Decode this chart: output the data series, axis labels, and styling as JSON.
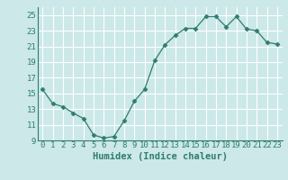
{
  "x": [
    0,
    1,
    2,
    3,
    4,
    5,
    6,
    7,
    8,
    9,
    10,
    11,
    12,
    13,
    14,
    15,
    16,
    17,
    18,
    19,
    20,
    21,
    22,
    23
  ],
  "y": [
    15.5,
    13.7,
    13.3,
    12.5,
    11.8,
    9.7,
    9.3,
    9.5,
    11.5,
    14.0,
    15.5,
    19.2,
    21.2,
    22.4,
    23.3,
    23.3,
    24.8,
    24.8,
    23.5,
    24.8,
    23.2,
    23.0,
    21.5,
    21.3
  ],
  "line_color": "#2e7d6e",
  "marker": "D",
  "marker_size": 2.5,
  "bg_color": "#cce8e8",
  "grid_color": "#ffffff",
  "xlabel": "Humidex (Indice chaleur)",
  "ylim": [
    9,
    26
  ],
  "yticks": [
    9,
    11,
    13,
    15,
    17,
    19,
    21,
    23,
    25
  ],
  "xtick_labels": [
    "0",
    "1",
    "2",
    "3",
    "4",
    "5",
    "6",
    "7",
    "8",
    "9",
    "10",
    "11",
    "12",
    "13",
    "14",
    "15",
    "16",
    "17",
    "18",
    "19",
    "20",
    "21",
    "22",
    "23"
  ],
  "xticks": [
    0,
    1,
    2,
    3,
    4,
    5,
    6,
    7,
    8,
    9,
    10,
    11,
    12,
    13,
    14,
    15,
    16,
    17,
    18,
    19,
    20,
    21,
    22,
    23
  ],
  "xlim": [
    -0.5,
    23.5
  ],
  "tick_fontsize": 6.5,
  "label_fontsize": 7.5
}
